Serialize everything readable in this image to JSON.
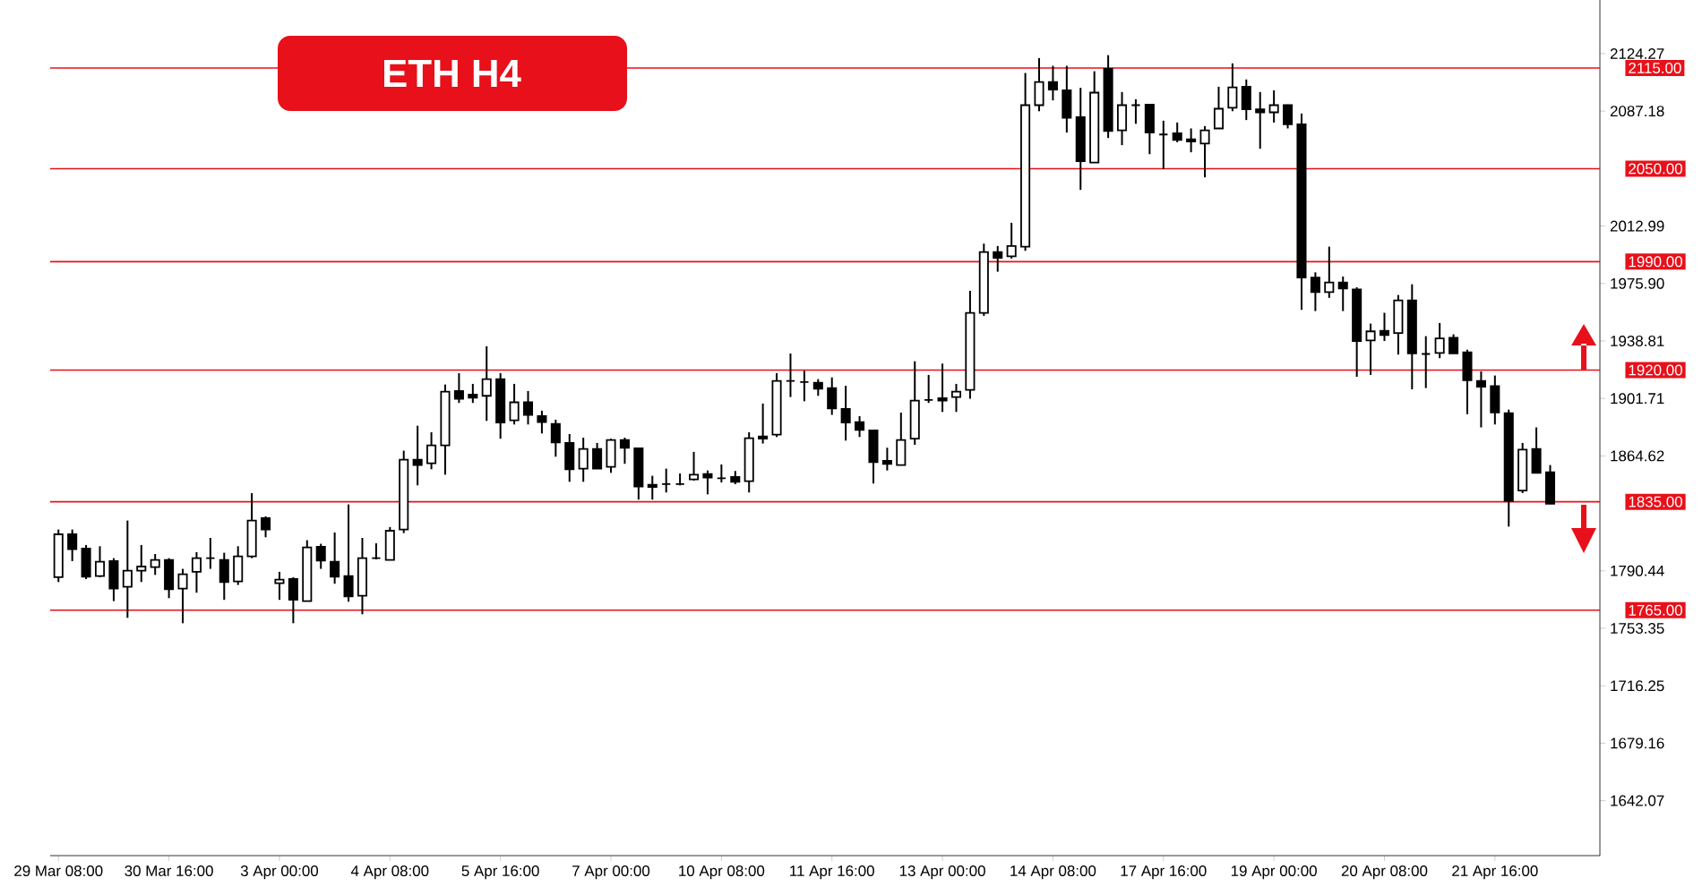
{
  "chart_data": {
    "type": "candlestick",
    "title": "ETH H4",
    "categories": [
      "29 Mar 08:00",
      null,
      null,
      null,
      null,
      null,
      null,
      null,
      "30 Mar 16:00",
      null,
      null,
      null,
      null,
      null,
      null,
      null,
      "3 Apr 00:00",
      null,
      null,
      null,
      null,
      null,
      null,
      null,
      "4 Apr 08:00",
      null,
      null,
      null,
      null,
      null,
      null,
      null,
      "5 Apr 16:00",
      null,
      null,
      null,
      null,
      null,
      null,
      null,
      "7 Apr 00:00",
      null,
      null,
      null,
      null,
      null,
      null,
      null,
      "10 Apr 08:00",
      null,
      null,
      null,
      null,
      null,
      null,
      null,
      "11 Apr 16:00",
      null,
      null,
      null,
      null,
      null,
      null,
      null,
      "13 Apr 00:00",
      null,
      null,
      null,
      null,
      null,
      null,
      null,
      "14 Apr 08:00",
      null,
      null,
      null,
      null,
      null,
      null,
      null,
      "17 Apr 16:00",
      null,
      null,
      null,
      null,
      null,
      null,
      null,
      "19 Apr 00:00",
      null,
      null,
      null,
      null,
      null,
      null,
      null,
      "20 Apr 08:00",
      null,
      null,
      null,
      null,
      null,
      null,
      null,
      "21 Apr 16:00",
      null,
      null,
      null,
      null
    ],
    "ohlc": [
      [
        1786.3,
        1817.1,
        1783.2,
        1814.0
      ],
      [
        1814.0,
        1817.1,
        1796.7,
        1804.4
      ],
      [
        1804.8,
        1807.1,
        1785.1,
        1786.7
      ],
      [
        1787.1,
        1806.3,
        1786.3,
        1796.3
      ],
      [
        1796.7,
        1798.6,
        1770.9,
        1779.0
      ],
      [
        1780.1,
        1822.9,
        1760.1,
        1790.5
      ],
      [
        1790.5,
        1807.1,
        1783.2,
        1793.2
      ],
      [
        1792.8,
        1801.3,
        1787.8,
        1797.5
      ],
      [
        1797.5,
        1798.6,
        1772.8,
        1778.6
      ],
      [
        1779.0,
        1791.7,
        1756.6,
        1788.2
      ],
      [
        1789.8,
        1802.5,
        1776.3,
        1798.6
      ],
      [
        1798.6,
        1811.7,
        1791.7,
        1798.6
      ],
      [
        1797.5,
        1802.1,
        1771.7,
        1783.2
      ],
      [
        1783.6,
        1806.3,
        1781.3,
        1799.8
      ],
      [
        1799.8,
        1840.6,
        1798.6,
        1822.9
      ],
      [
        1824.4,
        1825.6,
        1812.1,
        1817.1
      ],
      [
        1782.4,
        1789.8,
        1771.7,
        1784.8
      ],
      [
        1785.1,
        1786.3,
        1756.6,
        1771.7
      ],
      [
        1770.9,
        1810.2,
        1770.9,
        1805.6
      ],
      [
        1805.9,
        1807.9,
        1791.7,
        1797.1
      ],
      [
        1796.3,
        1815.2,
        1782.1,
        1786.7
      ],
      [
        1787.1,
        1833.3,
        1770.5,
        1774.0
      ],
      [
        1774.4,
        1811.7,
        1762.4,
        1798.6
      ],
      [
        1798.6,
        1808.2,
        1797.8,
        1798.6
      ],
      [
        1797.5,
        1818.7,
        1797.5,
        1816.3
      ],
      [
        1817.1,
        1868.0,
        1814.8,
        1862.2
      ],
      [
        1862.2,
        1884.1,
        1845.6,
        1858.7
      ],
      [
        1859.9,
        1879.9,
        1856.0,
        1871.4
      ],
      [
        1871.4,
        1910.7,
        1852.5,
        1906.1
      ],
      [
        1906.5,
        1918.0,
        1898.8,
        1901.5
      ],
      [
        1904.2,
        1911.1,
        1898.8,
        1902.2
      ],
      [
        1903.4,
        1935.4,
        1887.2,
        1914.2
      ],
      [
        1914.2,
        1918.0,
        1875.7,
        1886.1
      ],
      [
        1887.6,
        1911.1,
        1884.9,
        1899.2
      ],
      [
        1899.2,
        1906.5,
        1884.9,
        1891.1
      ],
      [
        1890.3,
        1893.8,
        1879.1,
        1886.4
      ],
      [
        1885.3,
        1888.0,
        1864.1,
        1873.3
      ],
      [
        1873.0,
        1878.7,
        1847.9,
        1856.0
      ],
      [
        1856.4,
        1876.4,
        1847.9,
        1869.1
      ],
      [
        1869.1,
        1873.0,
        1856.4,
        1856.4
      ],
      [
        1857.6,
        1875.7,
        1853.7,
        1874.9
      ],
      [
        1874.9,
        1876.4,
        1859.5,
        1869.9
      ],
      [
        1869.5,
        1869.5,
        1836.4,
        1844.8
      ],
      [
        1846.0,
        1851.8,
        1836.4,
        1844.5
      ],
      [
        1846.4,
        1856.4,
        1841.0,
        1846.4
      ],
      [
        1846.4,
        1853.3,
        1845.6,
        1846.4
      ],
      [
        1849.5,
        1867.2,
        1848.7,
        1852.5
      ],
      [
        1852.9,
        1855.2,
        1839.8,
        1850.6
      ],
      [
        1850.2,
        1859.1,
        1847.5,
        1850.2
      ],
      [
        1851.0,
        1854.9,
        1846.4,
        1847.9
      ],
      [
        1848.3,
        1879.9,
        1841.0,
        1876.0
      ],
      [
        1877.2,
        1898.4,
        1872.6,
        1875.7
      ],
      [
        1878.4,
        1918.0,
        1876.8,
        1913.0
      ],
      [
        1913.0,
        1930.7,
        1902.6,
        1913.0
      ],
      [
        1912.3,
        1919.6,
        1899.9,
        1912.3
      ],
      [
        1911.9,
        1914.2,
        1903.4,
        1908.0
      ],
      [
        1908.4,
        1915.3,
        1891.1,
        1895.3
      ],
      [
        1894.9,
        1909.9,
        1874.5,
        1886.1
      ],
      [
        1886.4,
        1890.3,
        1876.8,
        1881.4
      ],
      [
        1881.1,
        1881.1,
        1846.8,
        1860.6
      ],
      [
        1861.4,
        1869.9,
        1855.2,
        1859.5
      ],
      [
        1858.7,
        1892.6,
        1858.7,
        1874.9
      ],
      [
        1875.7,
        1925.7,
        1871.8,
        1900.3
      ],
      [
        1900.7,
        1916.9,
        1898.8,
        1900.7
      ],
      [
        1901.9,
        1924.2,
        1893.0,
        1900.3
      ],
      [
        1902.6,
        1911.1,
        1893.0,
        1906.1
      ],
      [
        1907.2,
        1971.2,
        1901.5,
        1956.9
      ],
      [
        1956.9,
        2001.6,
        1955.0,
        1996.2
      ],
      [
        1996.2,
        2000.1,
        1983.5,
        1992.4
      ],
      [
        1993.5,
        2015.1,
        1992.0,
        2000.1
      ],
      [
        1999.7,
        2111.8,
        1997.0,
        2091.0
      ],
      [
        2091.0,
        2121.4,
        2087.1,
        2106.0
      ],
      [
        2106.0,
        2116.4,
        2094.1,
        2101.0
      ],
      [
        2100.6,
        2116.4,
        2073.3,
        2082.9
      ],
      [
        2083.3,
        2102.2,
        2036.3,
        2054.8
      ],
      [
        2054.0,
        2112.9,
        2054.0,
        2099.1
      ],
      [
        2114.5,
        2123.3,
        2069.8,
        2074.4
      ],
      [
        2074.8,
        2099.5,
        2065.2,
        2091.0
      ],
      [
        2091.0,
        2094.8,
        2079.0,
        2091.0
      ],
      [
        2091.4,
        2091.4,
        2059.4,
        2073.3
      ],
      [
        2072.1,
        2081.0,
        2049.8,
        2072.1
      ],
      [
        2072.9,
        2079.8,
        2067.1,
        2068.6
      ],
      [
        2069.0,
        2076.0,
        2060.6,
        2067.5
      ],
      [
        2066.3,
        2077.5,
        2044.4,
        2074.8
      ],
      [
        2076.0,
        2102.9,
        2076.0,
        2088.7
      ],
      [
        2089.4,
        2118.0,
        2087.1,
        2102.5
      ],
      [
        2102.9,
        2107.6,
        2081.4,
        2088.3
      ],
      [
        2088.3,
        2099.5,
        2062.9,
        2086.4
      ],
      [
        2086.4,
        2100.6,
        2079.8,
        2091.0
      ],
      [
        2091.0,
        2091.4,
        2076.0,
        2078.7
      ],
      [
        2078.7,
        2085.6,
        1958.9,
        1979.7
      ],
      [
        1979.7,
        1983.1,
        1958.1,
        1970.4
      ],
      [
        1970.4,
        1999.7,
        1966.6,
        1976.6
      ],
      [
        1976.6,
        1980.4,
        1958.1,
        1972.7
      ],
      [
        1972.0,
        1973.5,
        1915.7,
        1938.8
      ],
      [
        1939.2,
        1950.0,
        1916.9,
        1945.0
      ],
      [
        1945.4,
        1957.0,
        1938.8,
        1942.7
      ],
      [
        1943.9,
        1968.5,
        1930.0,
        1965.0
      ],
      [
        1965.0,
        1975.4,
        1907.6,
        1930.8
      ],
      [
        1930.4,
        1941.9,
        1908.4,
        1930.4
      ],
      [
        1931.1,
        1950.4,
        1927.7,
        1940.4
      ],
      [
        1940.8,
        1943.1,
        1930.8,
        1930.8
      ],
      [
        1931.5,
        1933.1,
        1891.5,
        1913.4
      ],
      [
        1913.0,
        1919.2,
        1883.0,
        1909.2
      ],
      [
        1909.6,
        1916.5,
        1884.9,
        1892.6
      ],
      [
        1892.2,
        1894.5,
        1819.0,
        1835.6
      ],
      [
        1842.2,
        1873.0,
        1840.6,
        1868.7
      ],
      [
        1869.1,
        1883.0,
        1853.7,
        1853.7
      ],
      [
        1854.1,
        1858.7,
        1833.7,
        1833.7
      ]
    ],
    "ylim": [
      1606.6,
      2158.9
    ],
    "yticks": [
      2124.27,
      2087.18,
      2012.99,
      {
        "value": 1975.9,
        "label": "1975.90"
      },
      1938.81,
      1901.71,
      1864.62,
      1790.44,
      1753.35,
      1716.25,
      1679.16,
      1642.07
    ],
    "ref_lines": [
      {
        "axis": "y",
        "value": 2115,
        "label": "2115.00",
        "color": "#e8101a"
      },
      {
        "axis": "y",
        "value": 2050,
        "label": "2050.00",
        "color": "#e8101a"
      },
      {
        "axis": "y",
        "value": 1990,
        "label": "1990.00",
        "color": "#e8101a"
      },
      {
        "axis": "y",
        "value": 1920,
        "label": "1920.00",
        "color": "#e8101a"
      },
      {
        "axis": "y",
        "value": 1835,
        "label": "1835.00",
        "color": "#e8101a"
      },
      {
        "axis": "y",
        "value": 1765,
        "label": "1765.00",
        "color": "#e8101a"
      }
    ]
  }
}
